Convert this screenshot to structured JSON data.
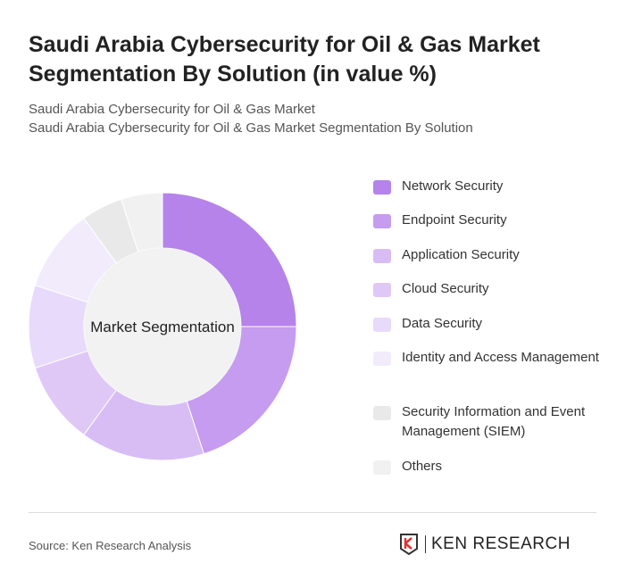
{
  "title": "Saudi Arabia Cybersecurity for Oil & Gas Market Segmentation By Solution (in value %)",
  "subtitle1": "Saudi Arabia Cybersecurity for Oil & Gas Market",
  "subtitle2": "Saudi Arabia Cybersecurity for Oil & Gas Market Segmentation By Solution",
  "chart_data": {
    "type": "pie",
    "center_label": "Market Segmentation",
    "categories": [
      "Network Security",
      "Endpoint Security",
      "Application Security",
      "Cloud Security",
      "Data Security",
      "Identity and Access Management",
      "Security Information and Event Management (SIEM)",
      "Others"
    ],
    "values": [
      25,
      20,
      15,
      10,
      10,
      10,
      5,
      5
    ],
    "colors": [
      "#b583ea",
      "#c59cef",
      "#d8bdf5",
      "#dfc8f6",
      "#e8dafa",
      "#f1ebfc",
      "#e9e9e9",
      "#f1f1f1"
    ],
    "legend_position": "right"
  },
  "source": "Source: Ken Research Analysis",
  "logo": "KEN RESEARCH"
}
